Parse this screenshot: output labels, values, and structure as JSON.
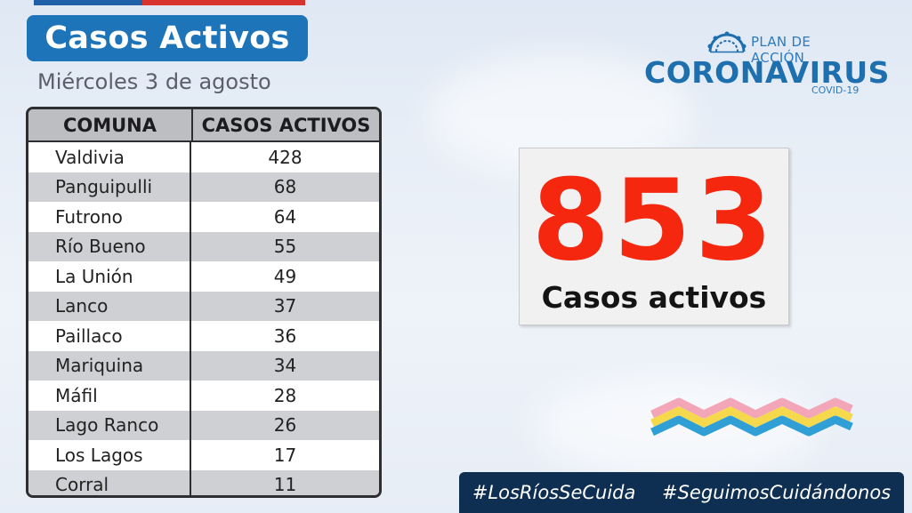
{
  "header": {
    "title": "Casos Activos",
    "date": "Miércoles 3 de agosto"
  },
  "table": {
    "headers": [
      "COMUNA",
      "CASOS ACTIVOS"
    ],
    "rows": [
      {
        "comuna": "Valdivia",
        "casos": "428"
      },
      {
        "comuna": "Panguipulli",
        "casos": "68"
      },
      {
        "comuna": "Futrono",
        "casos": "64"
      },
      {
        "comuna": "Río Bueno",
        "casos": "55"
      },
      {
        "comuna": "La Unión",
        "casos": "49"
      },
      {
        "comuna": "Lanco",
        "casos": "37"
      },
      {
        "comuna": "Paillaco",
        "casos": "36"
      },
      {
        "comuna": "Mariquina",
        "casos": "34"
      },
      {
        "comuna": "Máfil",
        "casos": "28"
      },
      {
        "comuna": "Lago Ranco",
        "casos": "26"
      },
      {
        "comuna": "Los Lagos",
        "casos": "17"
      },
      {
        "comuna": "Corral",
        "casos": "11"
      }
    ]
  },
  "logo": {
    "plan": "PLAN DE ACCIÓN",
    "name": "CORONAVIRUS",
    "sub": "COVID-19"
  },
  "summary": {
    "total": "853",
    "label": "Casos activos"
  },
  "hashtags": [
    "#LosRíosSeCuida",
    "#SeguimosCuidándonos"
  ],
  "colors": {
    "title_bg": "#1d74b8",
    "number": "#f5280f",
    "footer_bg": "#0e2f52"
  }
}
